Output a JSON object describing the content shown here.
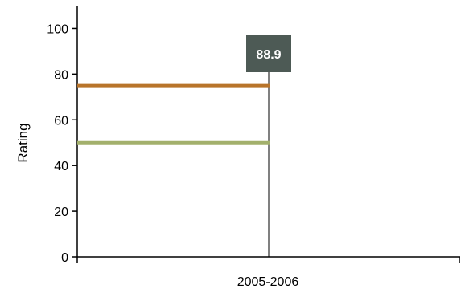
{
  "chart_data": {
    "type": "line",
    "title": "",
    "xlabel": "2005-2006",
    "ylabel": "Rating",
    "ylim": [
      0,
      110
    ],
    "y_ticks": [
      0,
      20,
      40,
      60,
      80,
      100
    ],
    "grid": false,
    "legend": "none",
    "series": [
      {
        "color": "#b8742a",
        "y": 75,
        "x_from": "start",
        "x_to": "2005-2006"
      },
      {
        "color": "#a3b06c",
        "y": 50,
        "x_from": "start",
        "x_to": "2005-2006"
      }
    ],
    "marker": {
      "x": "2005-2006",
      "value_label": "88.9",
      "label_bg": "#4d5a55",
      "line_color": "#000000"
    }
  }
}
